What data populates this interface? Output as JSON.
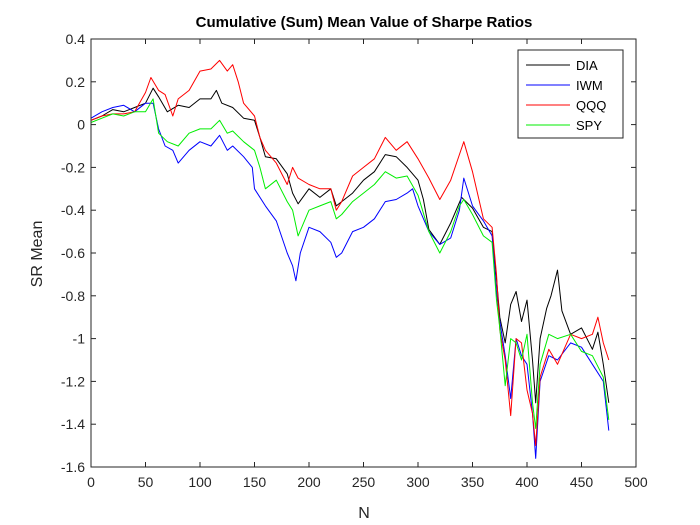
{
  "chart_data": {
    "type": "line",
    "title": "Cumulative (Sum) Mean Value of Sharpe Ratios",
    "xlabel": "N",
    "ylabel": "SR Mean",
    "xlim": [
      0,
      500
    ],
    "ylim": [
      -1.6,
      0.4
    ],
    "xticks": [
      "0",
      "50",
      "100",
      "150",
      "200",
      "250",
      "300",
      "350",
      "400",
      "450",
      "500"
    ],
    "yticks": [
      "0.4",
      "0.2",
      "0",
      "-0.2",
      "-0.4",
      "-0.6",
      "-0.8",
      "-1",
      "-1.2",
      "-1.4",
      "-1.6"
    ],
    "grid": false,
    "legend_position": "top-right",
    "series": [
      {
        "name": "DIA",
        "color": "#000000",
        "points": [
          [
            0,
            0.02
          ],
          [
            10,
            0.04
          ],
          [
            20,
            0.07
          ],
          [
            30,
            0.06
          ],
          [
            40,
            0.08
          ],
          [
            50,
            0.1
          ],
          [
            57,
            0.17
          ],
          [
            62,
            0.13
          ],
          [
            70,
            0.06
          ],
          [
            80,
            0.09
          ],
          [
            90,
            0.08
          ],
          [
            100,
            0.12
          ],
          [
            110,
            0.12
          ],
          [
            115,
            0.16
          ],
          [
            120,
            0.1
          ],
          [
            130,
            0.08
          ],
          [
            140,
            0.03
          ],
          [
            150,
            0.02
          ],
          [
            155,
            -0.06
          ],
          [
            160,
            -0.15
          ],
          [
            170,
            -0.16
          ],
          [
            180,
            -0.23
          ],
          [
            185,
            -0.32
          ],
          [
            190,
            -0.37
          ],
          [
            200,
            -0.3
          ],
          [
            210,
            -0.34
          ],
          [
            220,
            -0.3
          ],
          [
            225,
            -0.38
          ],
          [
            230,
            -0.36
          ],
          [
            240,
            -0.32
          ],
          [
            250,
            -0.26
          ],
          [
            260,
            -0.22
          ],
          [
            270,
            -0.14
          ],
          [
            280,
            -0.15
          ],
          [
            290,
            -0.2
          ],
          [
            300,
            -0.26
          ],
          [
            305,
            -0.35
          ],
          [
            310,
            -0.49
          ],
          [
            320,
            -0.56
          ],
          [
            330,
            -0.46
          ],
          [
            340,
            -0.34
          ],
          [
            350,
            -0.39
          ],
          [
            360,
            -0.48
          ],
          [
            368,
            -0.5
          ],
          [
            372,
            -0.72
          ],
          [
            375,
            -0.9
          ],
          [
            380,
            -1.02
          ],
          [
            385,
            -0.84
          ],
          [
            390,
            -0.78
          ],
          [
            395,
            -0.92
          ],
          [
            400,
            -0.82
          ],
          [
            405,
            -1.1
          ],
          [
            408,
            -1.3
          ],
          [
            412,
            -1.0
          ],
          [
            418,
            -0.86
          ],
          [
            422,
            -0.8
          ],
          [
            428,
            -0.68
          ],
          [
            432,
            -0.87
          ],
          [
            440,
            -0.98
          ],
          [
            450,
            -0.95
          ],
          [
            460,
            -1.05
          ],
          [
            465,
            -0.97
          ],
          [
            470,
            -1.12
          ],
          [
            475,
            -1.3
          ]
        ]
      },
      {
        "name": "IWM",
        "color": "#0000ff",
        "points": [
          [
            0,
            0.03
          ],
          [
            10,
            0.06
          ],
          [
            20,
            0.08
          ],
          [
            30,
            0.09
          ],
          [
            40,
            0.06
          ],
          [
            50,
            0.1
          ],
          [
            57,
            0.1
          ],
          [
            62,
            -0.02
          ],
          [
            68,
            -0.1
          ],
          [
            75,
            -0.12
          ],
          [
            80,
            -0.18
          ],
          [
            90,
            -0.12
          ],
          [
            100,
            -0.08
          ],
          [
            110,
            -0.1
          ],
          [
            118,
            -0.05
          ],
          [
            125,
            -0.12
          ],
          [
            130,
            -0.1
          ],
          [
            140,
            -0.15
          ],
          [
            148,
            -0.2
          ],
          [
            150,
            -0.3
          ],
          [
            160,
            -0.38
          ],
          [
            170,
            -0.45
          ],
          [
            180,
            -0.6
          ],
          [
            185,
            -0.66
          ],
          [
            188,
            -0.73
          ],
          [
            192,
            -0.6
          ],
          [
            200,
            -0.48
          ],
          [
            210,
            -0.5
          ],
          [
            220,
            -0.55
          ],
          [
            225,
            -0.62
          ],
          [
            230,
            -0.6
          ],
          [
            240,
            -0.5
          ],
          [
            250,
            -0.48
          ],
          [
            260,
            -0.44
          ],
          [
            270,
            -0.36
          ],
          [
            280,
            -0.35
          ],
          [
            290,
            -0.32
          ],
          [
            295,
            -0.3
          ],
          [
            300,
            -0.38
          ],
          [
            310,
            -0.5
          ],
          [
            320,
            -0.56
          ],
          [
            330,
            -0.53
          ],
          [
            338,
            -0.4
          ],
          [
            342,
            -0.25
          ],
          [
            350,
            -0.38
          ],
          [
            360,
            -0.45
          ],
          [
            368,
            -0.52
          ],
          [
            372,
            -0.78
          ],
          [
            375,
            -0.92
          ],
          [
            380,
            -1.08
          ],
          [
            385,
            -1.28
          ],
          [
            390,
            -1.0
          ],
          [
            395,
            -1.08
          ],
          [
            400,
            -1.12
          ],
          [
            405,
            -1.35
          ],
          [
            408,
            -1.56
          ],
          [
            412,
            -1.2
          ],
          [
            420,
            -1.08
          ],
          [
            428,
            -1.1
          ],
          [
            440,
            -1.02
          ],
          [
            450,
            -1.04
          ],
          [
            460,
            -1.12
          ],
          [
            470,
            -1.2
          ],
          [
            475,
            -1.43
          ]
        ]
      },
      {
        "name": "QQQ",
        "color": "#ff0000",
        "points": [
          [
            0,
            0.02
          ],
          [
            10,
            0.04
          ],
          [
            20,
            0.05
          ],
          [
            30,
            0.05
          ],
          [
            40,
            0.06
          ],
          [
            50,
            0.15
          ],
          [
            55,
            0.22
          ],
          [
            62,
            0.16
          ],
          [
            68,
            0.14
          ],
          [
            75,
            0.04
          ],
          [
            80,
            0.12
          ],
          [
            90,
            0.16
          ],
          [
            100,
            0.25
          ],
          [
            110,
            0.26
          ],
          [
            118,
            0.3
          ],
          [
            125,
            0.25
          ],
          [
            130,
            0.28
          ],
          [
            135,
            0.2
          ],
          [
            140,
            0.1
          ],
          [
            150,
            0.04
          ],
          [
            155,
            -0.06
          ],
          [
            160,
            -0.12
          ],
          [
            170,
            -0.18
          ],
          [
            180,
            -0.28
          ],
          [
            185,
            -0.2
          ],
          [
            190,
            -0.25
          ],
          [
            200,
            -0.28
          ],
          [
            210,
            -0.3
          ],
          [
            220,
            -0.3
          ],
          [
            225,
            -0.4
          ],
          [
            230,
            -0.36
          ],
          [
            240,
            -0.24
          ],
          [
            250,
            -0.2
          ],
          [
            260,
            -0.16
          ],
          [
            270,
            -0.06
          ],
          [
            280,
            -0.12
          ],
          [
            290,
            -0.08
          ],
          [
            300,
            -0.16
          ],
          [
            310,
            -0.25
          ],
          [
            320,
            -0.35
          ],
          [
            330,
            -0.26
          ],
          [
            338,
            -0.14
          ],
          [
            342,
            -0.08
          ],
          [
            350,
            -0.22
          ],
          [
            360,
            -0.44
          ],
          [
            368,
            -0.48
          ],
          [
            372,
            -0.7
          ],
          [
            375,
            -0.96
          ],
          [
            380,
            -1.1
          ],
          [
            385,
            -1.36
          ],
          [
            390,
            -1.0
          ],
          [
            395,
            -1.02
          ],
          [
            400,
            -1.24
          ],
          [
            405,
            -1.35
          ],
          [
            408,
            -1.5
          ],
          [
            412,
            -1.18
          ],
          [
            420,
            -1.05
          ],
          [
            428,
            -1.12
          ],
          [
            440,
            -0.98
          ],
          [
            450,
            -1.0
          ],
          [
            460,
            -0.98
          ],
          [
            465,
            -0.9
          ],
          [
            470,
            -1.02
          ],
          [
            475,
            -1.1
          ]
        ]
      },
      {
        "name": "SPY",
        "color": "#00ee00",
        "points": [
          [
            0,
            0.01
          ],
          [
            10,
            0.03
          ],
          [
            20,
            0.05
          ],
          [
            30,
            0.04
          ],
          [
            40,
            0.06
          ],
          [
            50,
            0.06
          ],
          [
            57,
            0.12
          ],
          [
            62,
            -0.04
          ],
          [
            70,
            -0.08
          ],
          [
            80,
            -0.1
          ],
          [
            90,
            -0.04
          ],
          [
            100,
            -0.02
          ],
          [
            110,
            -0.02
          ],
          [
            118,
            0.02
          ],
          [
            125,
            -0.04
          ],
          [
            130,
            -0.03
          ],
          [
            140,
            -0.08
          ],
          [
            150,
            -0.12
          ],
          [
            155,
            -0.2
          ],
          [
            160,
            -0.3
          ],
          [
            170,
            -0.26
          ],
          [
            180,
            -0.36
          ],
          [
            185,
            -0.4
          ],
          [
            190,
            -0.52
          ],
          [
            200,
            -0.4
          ],
          [
            210,
            -0.38
          ],
          [
            220,
            -0.36
          ],
          [
            225,
            -0.44
          ],
          [
            230,
            -0.42
          ],
          [
            240,
            -0.36
          ],
          [
            250,
            -0.32
          ],
          [
            260,
            -0.28
          ],
          [
            270,
            -0.22
          ],
          [
            280,
            -0.25
          ],
          [
            290,
            -0.24
          ],
          [
            300,
            -0.33
          ],
          [
            310,
            -0.5
          ],
          [
            320,
            -0.6
          ],
          [
            330,
            -0.5
          ],
          [
            338,
            -0.38
          ],
          [
            342,
            -0.35
          ],
          [
            350,
            -0.42
          ],
          [
            360,
            -0.52
          ],
          [
            368,
            -0.55
          ],
          [
            372,
            -0.82
          ],
          [
            375,
            -0.95
          ],
          [
            380,
            -1.22
          ],
          [
            385,
            -1.0
          ],
          [
            390,
            -1.02
          ],
          [
            395,
            -1.1
          ],
          [
            400,
            -0.98
          ],
          [
            405,
            -1.3
          ],
          [
            408,
            -1.42
          ],
          [
            412,
            -1.12
          ],
          [
            420,
            -0.98
          ],
          [
            428,
            -1.0
          ],
          [
            440,
            -0.98
          ],
          [
            450,
            -1.06
          ],
          [
            460,
            -1.08
          ],
          [
            470,
            -1.18
          ],
          [
            475,
            -1.38
          ]
        ]
      }
    ]
  }
}
